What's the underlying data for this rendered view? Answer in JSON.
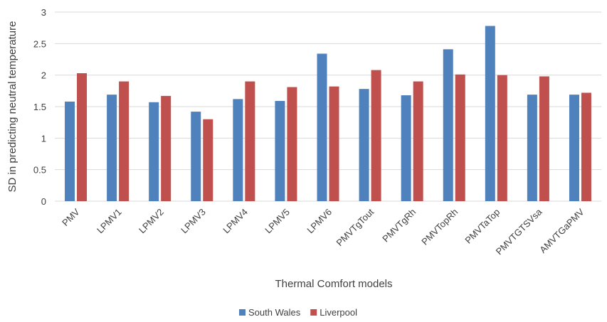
{
  "chart_data": {
    "type": "bar",
    "title": "",
    "xlabel": "Thermal Comfort models",
    "ylabel": "SD in predicting neutral temperature",
    "ylim": [
      0,
      3
    ],
    "yticks": [
      "0",
      "0.5",
      "1",
      "1.5",
      "2",
      "2.5",
      "3"
    ],
    "grid": true,
    "legend_position": "bottom",
    "categories": [
      "PMV",
      "LPMV1",
      "LPMV2",
      "LPMV3",
      "LPMV4",
      "LPMV5",
      "LPMV6",
      "PMVTgTout",
      "PMVTgRh",
      "PMVTopRh",
      "PMVTaTop",
      "PMVTGTSVsa",
      "AMVTGaPMV"
    ],
    "series": [
      {
        "name": "South Wales",
        "color": "#4f81bd",
        "values": [
          1.58,
          1.69,
          1.57,
          1.42,
          1.62,
          1.59,
          2.34,
          1.78,
          1.68,
          2.41,
          2.78,
          1.69,
          1.69
        ]
      },
      {
        "name": "Liverpool",
        "color": "#c0504d",
        "values": [
          2.03,
          1.9,
          1.67,
          1.3,
          1.9,
          1.81,
          1.82,
          2.08,
          1.9,
          2.01,
          2.0,
          1.98,
          1.72
        ]
      }
    ]
  }
}
